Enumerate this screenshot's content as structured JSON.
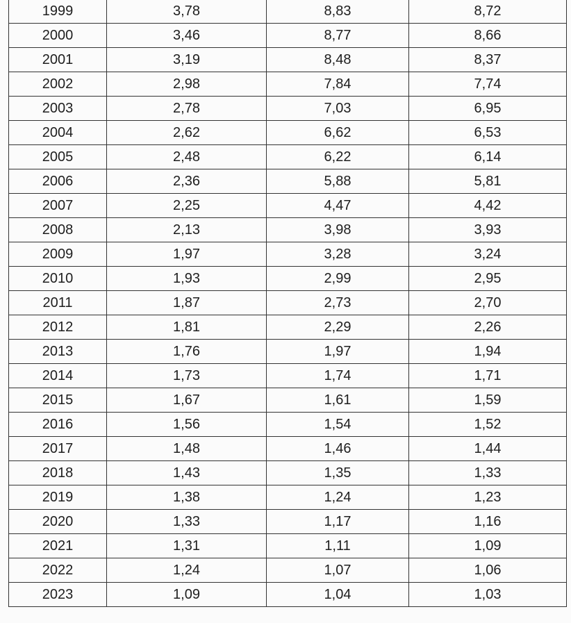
{
  "table": {
    "rows": [
      [
        "1999",
        "3,78",
        "8,83",
        "8,72"
      ],
      [
        "2000",
        "3,46",
        "8,77",
        "8,66"
      ],
      [
        "2001",
        "3,19",
        "8,48",
        "8,37"
      ],
      [
        "2002",
        "2,98",
        "7,84",
        "7,74"
      ],
      [
        "2003",
        "2,78",
        "7,03",
        "6,95"
      ],
      [
        "2004",
        "2,62",
        "6,62",
        "6,53"
      ],
      [
        "2005",
        "2,48",
        "6,22",
        "6,14"
      ],
      [
        "2006",
        "2,36",
        "5,88",
        "5,81"
      ],
      [
        "2007",
        "2,25",
        "4,47",
        "4,42"
      ],
      [
        "2008",
        "2,13",
        "3,98",
        "3,93"
      ],
      [
        "2009",
        "1,97",
        "3,28",
        "3,24"
      ],
      [
        "2010",
        "1,93",
        "2,99",
        "2,95"
      ],
      [
        "2011",
        "1,87",
        "2,73",
        "2,70"
      ],
      [
        "2012",
        "1,81",
        "2,29",
        "2,26"
      ],
      [
        "2013",
        "1,76",
        "1,97",
        "1,94"
      ],
      [
        "2014",
        "1,73",
        "1,74",
        "1,71"
      ],
      [
        "2015",
        "1,67",
        "1,61",
        "1,59"
      ],
      [
        "2016",
        "1,56",
        "1,54",
        "1,52"
      ],
      [
        "2017",
        "1,48",
        "1,46",
        "1,44"
      ],
      [
        "2018",
        "1,43",
        "1,35",
        "1,33"
      ],
      [
        "2019",
        "1,38",
        "1,24",
        "1,23"
      ],
      [
        "2020",
        "1,33",
        "1,17",
        "1,16"
      ],
      [
        "2021",
        "1,31",
        "1,11",
        "1,09"
      ],
      [
        "2022",
        "1,24",
        "1,07",
        "1,06"
      ],
      [
        "2023",
        "1,09",
        "1,04",
        "1,03"
      ]
    ]
  }
}
